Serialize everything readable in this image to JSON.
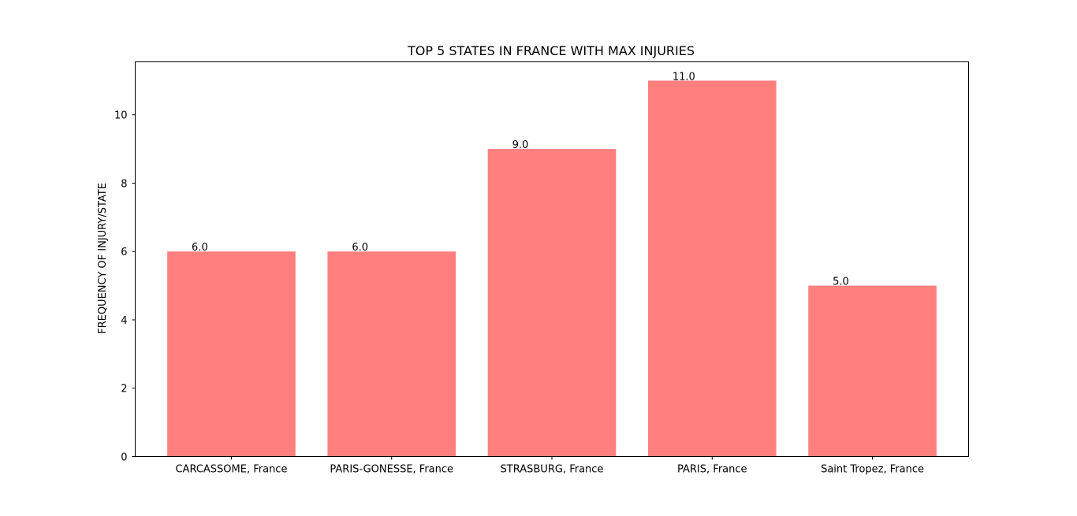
{
  "chart_data": {
    "type": "bar",
    "title": "TOP 5 STATES IN FRANCE WITH MAX INJURIES",
    "xlabel": "",
    "ylabel": "FREQUENCY OF INJURY/STATE",
    "categories": [
      "CARCASSOME, France",
      "PARIS-GONESSE, France",
      "STRASBURG, France",
      "PARIS, France",
      "Saint Tropez, France"
    ],
    "values": [
      6.0,
      6.0,
      9.0,
      11.0,
      5.0
    ],
    "data_labels": [
      "6.0",
      "6.0",
      "9.0",
      "11.0",
      "5.0"
    ],
    "yticks": [
      0,
      2,
      4,
      6,
      8,
      10
    ],
    "ylim": [
      0,
      11.55
    ],
    "bar_color": "#ff7f7f",
    "grid": false,
    "legend": "none"
  }
}
